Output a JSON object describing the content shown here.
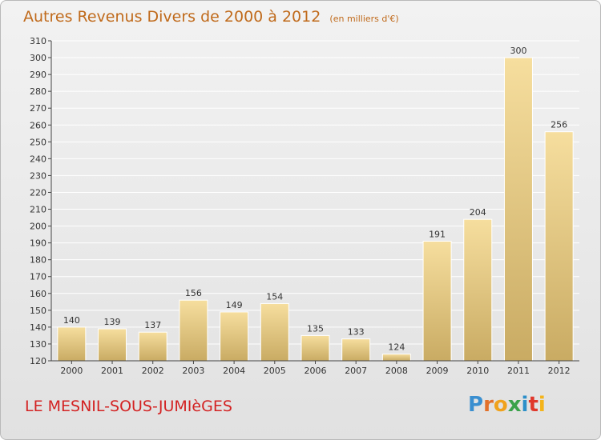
{
  "title": "Autres Revenus Divers de 2000 à 2012",
  "unit": "(en milliers d'€)",
  "commune": "LE MESNIL-SOUS-JUMIèGES",
  "logo": {
    "text": "Proxiti",
    "colors": [
      "#3a8fd0",
      "#e2702a",
      "#f0a21c",
      "#3aa24a",
      "#2c8fc9",
      "#e0372b",
      "#f4b41a"
    ]
  },
  "colors": {
    "title": "#c06a1b",
    "commune": "#d32222",
    "bar_light": "#f6de9e",
    "bar_dark": "#c9ab63",
    "axis": "#444444",
    "grid": "#ffffff"
  },
  "chart_data": {
    "type": "bar",
    "title": "Autres Revenus Divers de 2000 à 2012",
    "xlabel": "",
    "ylabel": "",
    "categories": [
      "2000",
      "2001",
      "2002",
      "2003",
      "2004",
      "2005",
      "2006",
      "2007",
      "2008",
      "2009",
      "2010",
      "2011",
      "2012"
    ],
    "values": [
      140,
      139,
      137,
      156,
      149,
      154,
      135,
      133,
      124,
      191,
      204,
      300,
      256
    ],
    "ylim": [
      120,
      310
    ],
    "yticks": [
      120,
      130,
      140,
      150,
      160,
      170,
      180,
      190,
      200,
      210,
      220,
      230,
      240,
      250,
      260,
      270,
      280,
      290,
      300,
      310
    ],
    "grid": true,
    "legend": "none"
  }
}
